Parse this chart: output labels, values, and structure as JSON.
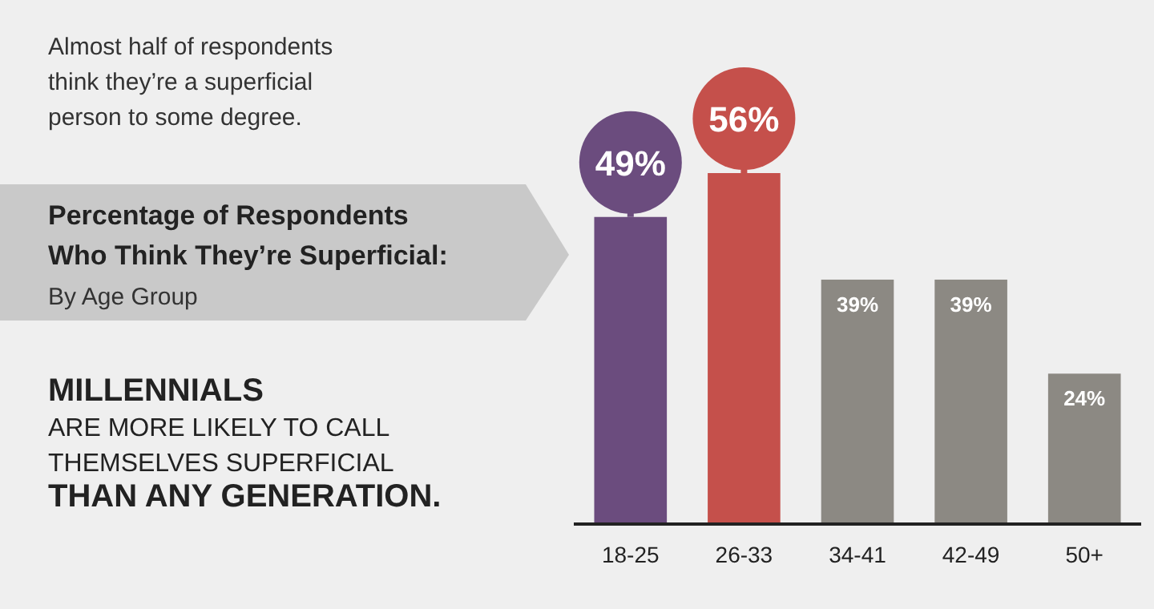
{
  "chart_data": {
    "type": "bar",
    "title": "Percentage of Respondents\nWho Think They’re Superficial:",
    "subtitle": "By Age Group",
    "categories": [
      "18-25",
      "26-33",
      "34-41",
      "42-49",
      "50+"
    ],
    "values": [
      49,
      56,
      39,
      39,
      24
    ],
    "colors": [
      "#6b4c7e",
      "#c5504b",
      "#8c8983",
      "#8c8983",
      "#8c8983"
    ],
    "value_labels": [
      "49%",
      "56%",
      "39%",
      "39%",
      "24%"
    ],
    "tick_labels": "x",
    "annotations": [
      "Almost half of respondents\nthink they’re a superficial\nperson to some degree.",
      "MILLENNIALS\nARE MORE LIKELY TO CALL\nTHEMSELVES SUPERFICIAL\nTHAN ANY GENERATION."
    ]
  }
}
